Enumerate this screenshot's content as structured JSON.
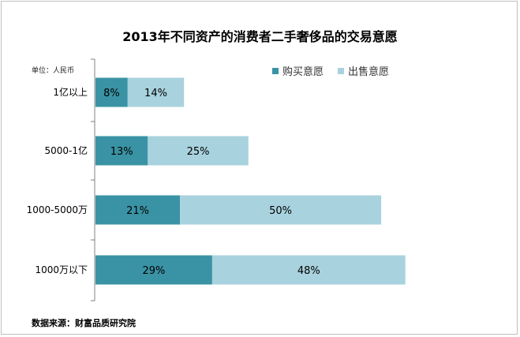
{
  "chart_data": {
    "type": "bar",
    "orientation": "horizontal",
    "stacked": true,
    "title": "2013年不同资产的消费者二手奢侈品的交易意愿",
    "unit_note": "单位：人民币",
    "source": "数据来源：财富品质研究院",
    "categories": [
      "1亿以上",
      "5000-1亿",
      "1000-5000万",
      "1000万以下"
    ],
    "series": [
      {
        "name": "购买意愿",
        "values": [
          8,
          13,
          21,
          29
        ],
        "labels": [
          "8%",
          "13%",
          "21%",
          "29%"
        ],
        "color": "#3a93a4"
      },
      {
        "name": "出售意愿",
        "values": [
          14,
          25,
          50,
          48
        ],
        "labels": [
          "14%",
          "25%",
          "50%",
          "48%"
        ],
        "color": "#a8d2de"
      }
    ],
    "xlim": [
      0,
      80
    ],
    "legend_position": "top-right",
    "grid": false
  }
}
